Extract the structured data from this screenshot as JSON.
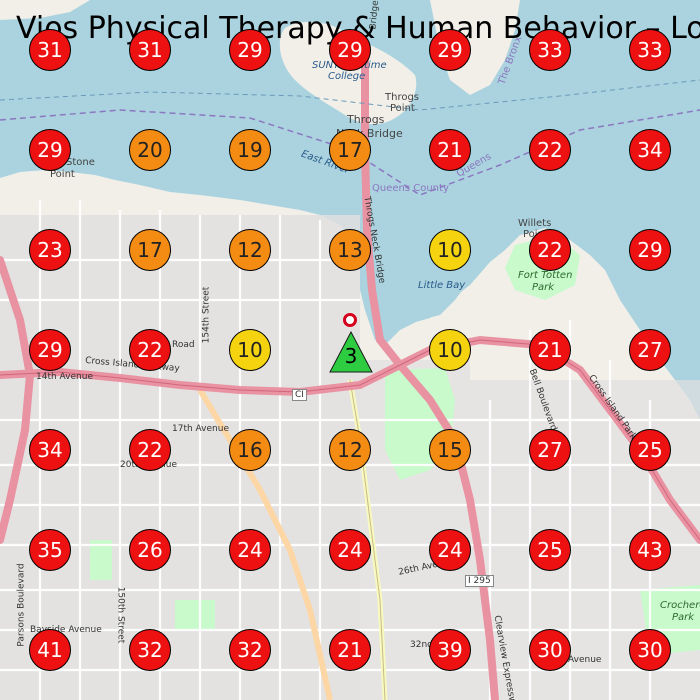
{
  "title": "Vios Physical Therapy & Human Behavior – Loc",
  "colors": {
    "water": "#aad3df",
    "land": "#f2efe9",
    "residential": "#e0dfdf",
    "park": "#c8facc",
    "motorway": "#e892a2",
    "primary": "#fcd6a4",
    "secondary": "#f7fabf",
    "marker_red": "#ee1111",
    "marker_orange": "#f48c13",
    "marker_yellow": "#f5d40f",
    "center_green": "#2ecc40",
    "pin_red": "#d4001c"
  },
  "center_marker": {
    "label": "3",
    "icon": "triangle-icon"
  },
  "grid_markers": [
    [
      31,
      31,
      29,
      29,
      29,
      33,
      33
    ],
    [
      29,
      20,
      19,
      17,
      21,
      22,
      34
    ],
    [
      23,
      17,
      12,
      13,
      10,
      22,
      29
    ],
    [
      29,
      22,
      10,
      null,
      10,
      21,
      27
    ],
    [
      34,
      22,
      16,
      12,
      15,
      27,
      25
    ],
    [
      35,
      26,
      24,
      24,
      24,
      25,
      43
    ],
    [
      41,
      32,
      32,
      21,
      39,
      30,
      30
    ]
  ],
  "map_labels": [
    {
      "name": "college",
      "text": "SUNY Maritime"
    },
    {
      "name": "college2",
      "text": "College"
    },
    {
      "name": "throgs-point",
      "text": "Throgs"
    },
    {
      "name": "throgs-point2",
      "text": "Point"
    },
    {
      "name": "throgs-bridge",
      "text": "Throgs"
    },
    {
      "name": "throgs-bridge2",
      "text": "Neck Bridge"
    },
    {
      "name": "east-river",
      "text": "East River"
    },
    {
      "name": "queens-county",
      "text": "Queens County"
    },
    {
      "name": "the-bronx",
      "text": "The Bronx"
    },
    {
      "name": "queens",
      "text": "Queens"
    },
    {
      "name": "willets-point",
      "text": "Willets"
    },
    {
      "name": "willets-point2",
      "text": "Point"
    },
    {
      "name": "fort-totten",
      "text": "Fort Totten"
    },
    {
      "name": "fort-totten2",
      "text": "Park"
    },
    {
      "name": "little-bay",
      "text": "Little Bay"
    },
    {
      "name": "stone-point",
      "text": "Stone"
    },
    {
      "name": "stone-point2",
      "text": "Point"
    },
    {
      "name": "cross-island",
      "text": "Cross Island Parkway"
    },
    {
      "name": "cross-island-2",
      "text": "Cross Island Parkway"
    },
    {
      "name": "14th-ave",
      "text": "14th Avenue"
    },
    {
      "name": "17th-ave",
      "text": "17th Avenue"
    },
    {
      "name": "20th-ave",
      "text": "20th Avenue"
    },
    {
      "name": "26th-ave",
      "text": "26th Avenue"
    },
    {
      "name": "bayside-ave",
      "text": "Bayside Avenue"
    },
    {
      "name": "bell-blvd",
      "text": "Bell Boulevard"
    },
    {
      "name": "i295",
      "text": "I 295"
    },
    {
      "name": "ci",
      "text": "CI"
    },
    {
      "name": "crocheron",
      "text": "Crocheron"
    },
    {
      "name": "crocheron2",
      "text": "Park"
    },
    {
      "name": "parsons",
      "text": "Parsons Boulevard"
    },
    {
      "name": "150th",
      "text": "150th Street"
    },
    {
      "name": "154th",
      "text": "154th Street"
    },
    {
      "name": "road",
      "text": "Road"
    },
    {
      "name": "clearview",
      "text": "Clearview Expressway"
    },
    {
      "name": "throgs-bridge-road",
      "text": "Throgs Neck Bridge"
    },
    {
      "name": "bridge-top",
      "text": "Bridge"
    },
    {
      "name": "32nd",
      "text": "32nd"
    },
    {
      "name": "avenue",
      "text": "Avenue"
    }
  ]
}
